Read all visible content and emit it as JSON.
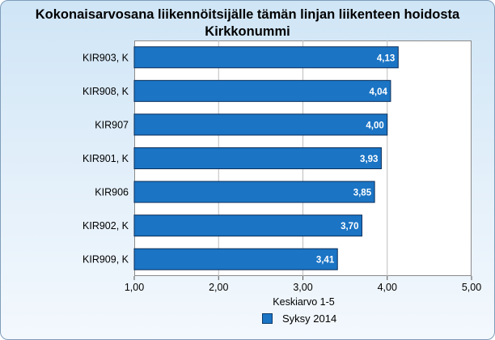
{
  "chart_data": {
    "type": "bar",
    "orientation": "horizontal",
    "title": "Kokonaisarvosana liikennöitsijälle tämän linjan liikenteen hoidosta",
    "subtitle": "Kirkkonummi",
    "categories": [
      "KIR903, K",
      "KIR908, K",
      "KIR907",
      "KIR901, K",
      "KIR906",
      "KIR902, K",
      "KIR909, K"
    ],
    "series": [
      {
        "name": "Syksy 2014",
        "values": [
          4.13,
          4.04,
          4.0,
          3.93,
          3.85,
          3.7,
          3.41
        ],
        "value_labels": [
          "4,13",
          "4,04",
          "4,00",
          "3,93",
          "3,85",
          "3,70",
          "3,41"
        ],
        "color": "#1b74c4"
      }
    ],
    "xlabel": "Keskiarvo 1-5",
    "xlim": [
      1,
      5
    ],
    "x_ticks": [
      1,
      2,
      3,
      4,
      5
    ],
    "x_tick_labels": [
      "1,00",
      "2,00",
      "3,00",
      "4,00",
      "5,00"
    ],
    "grid": true,
    "legend_position": "bottom"
  }
}
